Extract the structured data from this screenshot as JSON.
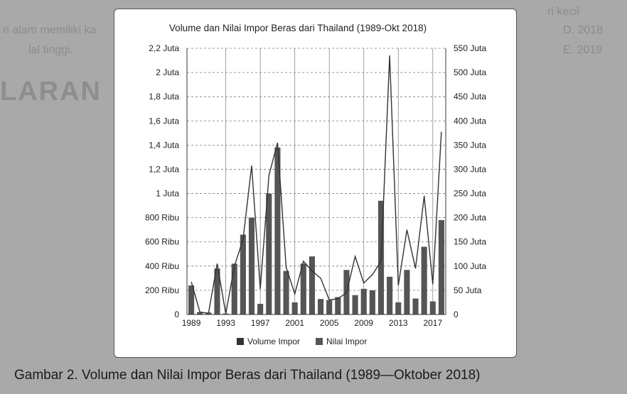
{
  "chart_data": {
    "type": "bar+line",
    "title": "Volume dan Nilai Impor Beras dari Thailand (1989-Okt 2018)",
    "x": [
      1989,
      1990,
      1991,
      1992,
      1993,
      1994,
      1995,
      1996,
      1997,
      1998,
      1999,
      2000,
      2001,
      2002,
      2003,
      2004,
      2005,
      2006,
      2007,
      2008,
      2009,
      2010,
      2011,
      2012,
      2013,
      2014,
      2015,
      2016,
      2017,
      2018
    ],
    "x_tick_labels": [
      "1989",
      "1993",
      "1997",
      "2001",
      "2005",
      "2009",
      "2013",
      "2017"
    ],
    "left_axis": {
      "ylim": [
        0,
        2200000
      ],
      "tick_labels": [
        "0",
        "200 Ribu",
        "400 Ribu",
        "600 Ribu",
        "800 Ribu",
        "1 Juta",
        "1,2 Juta",
        "1,4 Juta",
        "1,6 Juta",
        "1,8 Juta",
        "2 Juta",
        "2,2 Juta"
      ]
    },
    "right_axis": {
      "ylim": [
        0,
        550000000
      ],
      "tick_labels": [
        "0",
        "50 Juta",
        "100 Juta",
        "150 Juta",
        "200 Juta",
        "250 Juta",
        "300 Juta",
        "350 Juta",
        "400 Juta",
        "450 Juta",
        "500 Juta",
        "550 Juta"
      ]
    },
    "grid": "horizontal dashed, vertical every 4 years",
    "legend_position": "bottom",
    "series": [
      {
        "name": "Volume Impor",
        "kind": "line",
        "axis": "left",
        "color": "#333333",
        "values": [
          270000,
          20000,
          10000,
          420000,
          5000,
          400000,
          620000,
          1230000,
          210000,
          1150000,
          1420000,
          390000,
          170000,
          440000,
          360000,
          300000,
          120000,
          130000,
          180000,
          480000,
          260000,
          330000,
          440000,
          2140000,
          240000,
          700000,
          380000,
          980000,
          250000,
          1510000
        ]
      },
      {
        "name": "Nilai Impor",
        "kind": "bar",
        "axis": "right",
        "color": "#555555",
        "values": [
          60000000,
          5000000,
          4000000,
          95000000,
          2000000,
          105000000,
          165000000,
          200000000,
          22000000,
          250000000,
          345000000,
          90000000,
          25000000,
          105000000,
          120000000,
          32000000,
          30000000,
          36000000,
          92000000,
          40000000,
          53000000,
          50000000,
          235000000,
          78000000,
          25000000,
          92000000,
          33000000,
          140000000,
          27000000,
          195000000
        ]
      }
    ]
  },
  "caption": "Gambar 2. Volume dan Nilai Impor Beras dari Thailand (1989—Oktober 2018)",
  "background_text": {
    "line1": "ri kecil",
    "line2": "ri alam memiliki ka",
    "line3": "lal tinggi.",
    "line4": "D.  2018",
    "line5": "E.  2019",
    "heading": "LARAN"
  }
}
